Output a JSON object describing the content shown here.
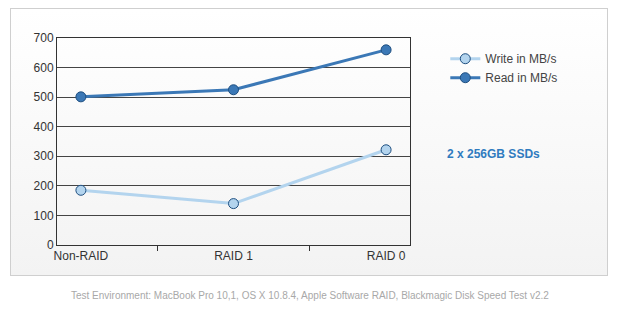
{
  "chart_data": {
    "type": "line",
    "categories": [
      "Non-RAID",
      "RAID 1",
      "RAID 0"
    ],
    "series": [
      {
        "name": "Write in MB/s",
        "color": "#b3d4ee",
        "values": [
          185,
          140,
          322
        ]
      },
      {
        "name": "Read in MB/s",
        "color": "#3b78b6",
        "values": [
          501,
          525,
          660
        ]
      }
    ],
    "ylim": [
      0,
      700
    ],
    "yticks": [
      0,
      100,
      200,
      300,
      400,
      500,
      600,
      700
    ],
    "grid": true,
    "legend": "right",
    "marker": "circle",
    "annotations": [
      "2 x 256GB SSDs",
      "Test Environment: MacBook Pro 10,1, OS X 10.8.4, Apple Software RAID, Blackmagic Disk Speed Test v2.2"
    ]
  }
}
